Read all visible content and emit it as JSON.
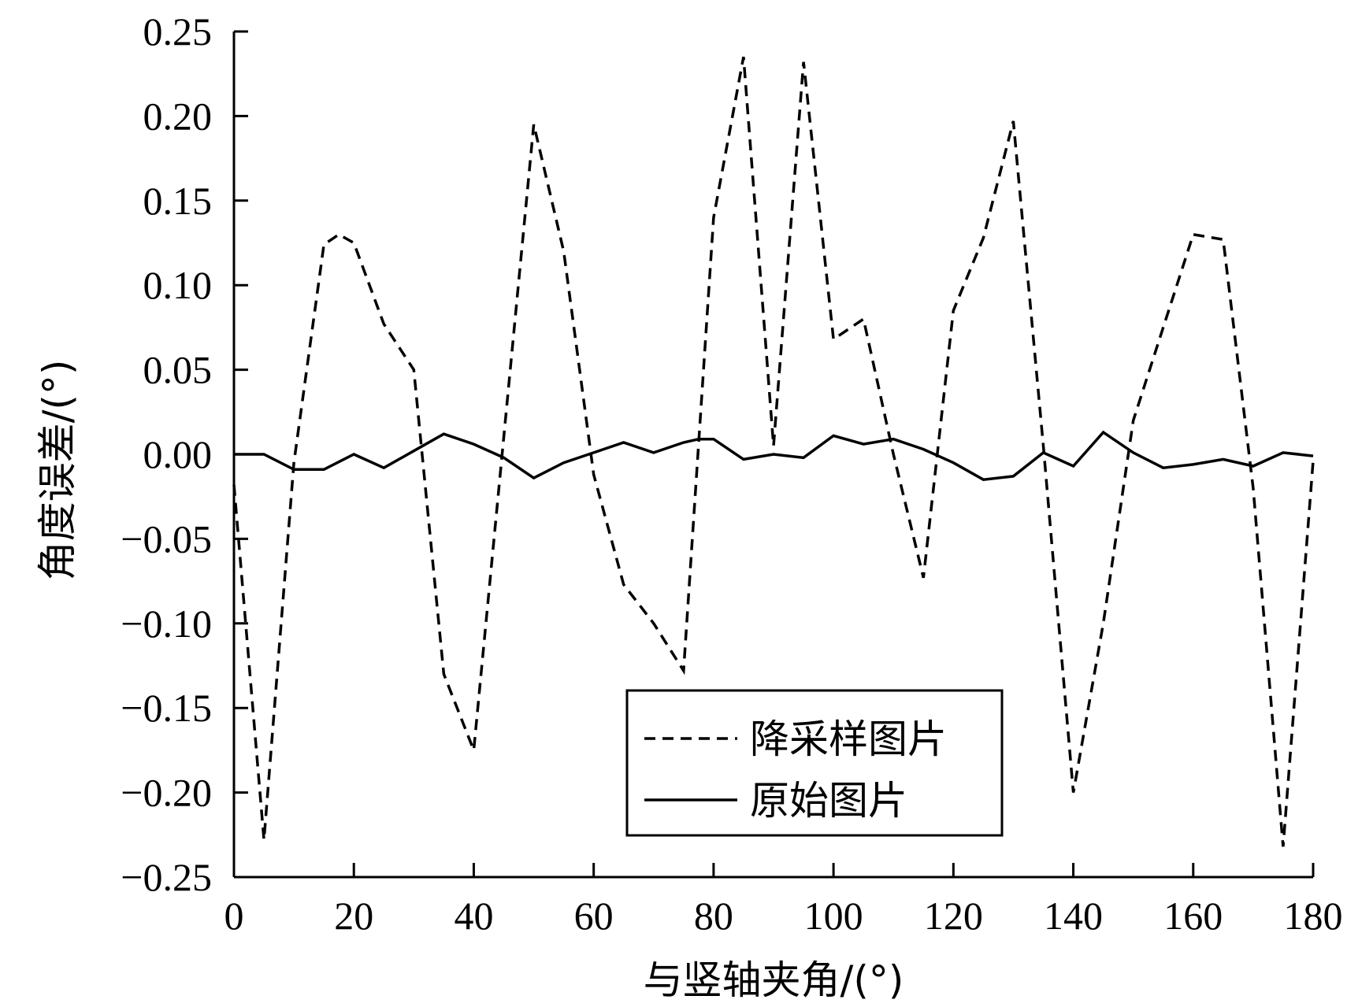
{
  "chart_data": {
    "type": "line",
    "title": "",
    "xlabel": "与竖轴夹角/(°)",
    "ylabel": "角度误差/(°)",
    "xlim": [
      0,
      180
    ],
    "ylim": [
      -0.25,
      0.25
    ],
    "x_ticks": [
      {
        "value": 0,
        "label": "0"
      },
      {
        "value": 20,
        "label": "20"
      },
      {
        "value": 40,
        "label": "40"
      },
      {
        "value": 60,
        "label": "60"
      },
      {
        "value": 80,
        "label": "80"
      },
      {
        "value": 100,
        "label": "100"
      },
      {
        "value": 120,
        "label": "120"
      },
      {
        "value": 140,
        "label": "140"
      },
      {
        "value": 160,
        "label": "160"
      },
      {
        "value": 180,
        "label": "180"
      }
    ],
    "y_ticks": [
      {
        "value": 0.25,
        "label": "0.25"
      },
      {
        "value": 0.2,
        "label": "0.20"
      },
      {
        "value": 0.15,
        "label": "0.15"
      },
      {
        "value": 0.1,
        "label": "0.10"
      },
      {
        "value": 0.05,
        "label": "0.05"
      },
      {
        "value": 0.0,
        "label": "0.00"
      },
      {
        "value": -0.05,
        "label": "−0.05"
      },
      {
        "value": -0.1,
        "label": "−0.10"
      },
      {
        "value": -0.15,
        "label": "−0.15"
      },
      {
        "value": -0.2,
        "label": "−0.20"
      },
      {
        "value": -0.25,
        "label": "−0.25"
      }
    ],
    "grid": false,
    "legend_position": "bottom-center",
    "series": [
      {
        "name": "降采样图片",
        "style": "dashed",
        "color": "#000000",
        "x": [
          0,
          5,
          10,
          15,
          17.5,
          20,
          25,
          30,
          35,
          40,
          45,
          50,
          55,
          60,
          65,
          70,
          75,
          80,
          85,
          90,
          95,
          100,
          105,
          110,
          115,
          120,
          125,
          130,
          135,
          140,
          145,
          150,
          155,
          160,
          165,
          170,
          175,
          180
        ],
        "y": [
          -0.018,
          -0.228,
          -0.005,
          0.124,
          0.13,
          0.125,
          0.077,
          0.05,
          -0.13,
          -0.175,
          0.01,
          0.195,
          0.12,
          -0.012,
          -0.077,
          -0.1,
          -0.128,
          0.14,
          0.235,
          0.005,
          0.232,
          0.068,
          0.08,
          0.0,
          -0.073,
          0.085,
          0.128,
          0.197,
          0.005,
          -0.2,
          -0.1,
          0.02,
          0.075,
          0.13,
          0.127,
          -0.02,
          -0.232,
          -0.004
        ]
      },
      {
        "name": "原始图片",
        "style": "solid",
        "color": "#000000",
        "x": [
          0,
          5,
          10,
          15,
          20,
          25,
          30,
          35,
          40,
          45,
          50,
          55,
          60,
          65,
          70,
          75,
          77.5,
          80,
          85,
          90,
          95,
          100,
          105,
          110,
          115,
          120,
          125,
          130,
          135,
          140,
          145,
          150,
          155,
          160,
          165,
          170,
          175,
          180
        ],
        "y": [
          0.0,
          0.0,
          -0.009,
          -0.009,
          0.0,
          -0.008,
          0.002,
          0.012,
          0.006,
          -0.002,
          -0.014,
          -0.005,
          0.001,
          0.007,
          0.001,
          0.007,
          0.009,
          0.009,
          -0.003,
          0.0,
          -0.002,
          0.011,
          0.006,
          0.009,
          0.003,
          -0.005,
          -0.015,
          -0.013,
          0.001,
          -0.007,
          0.013,
          0.001,
          -0.008,
          -0.006,
          -0.003,
          -0.007,
          0.001,
          -0.001
        ]
      }
    ]
  }
}
